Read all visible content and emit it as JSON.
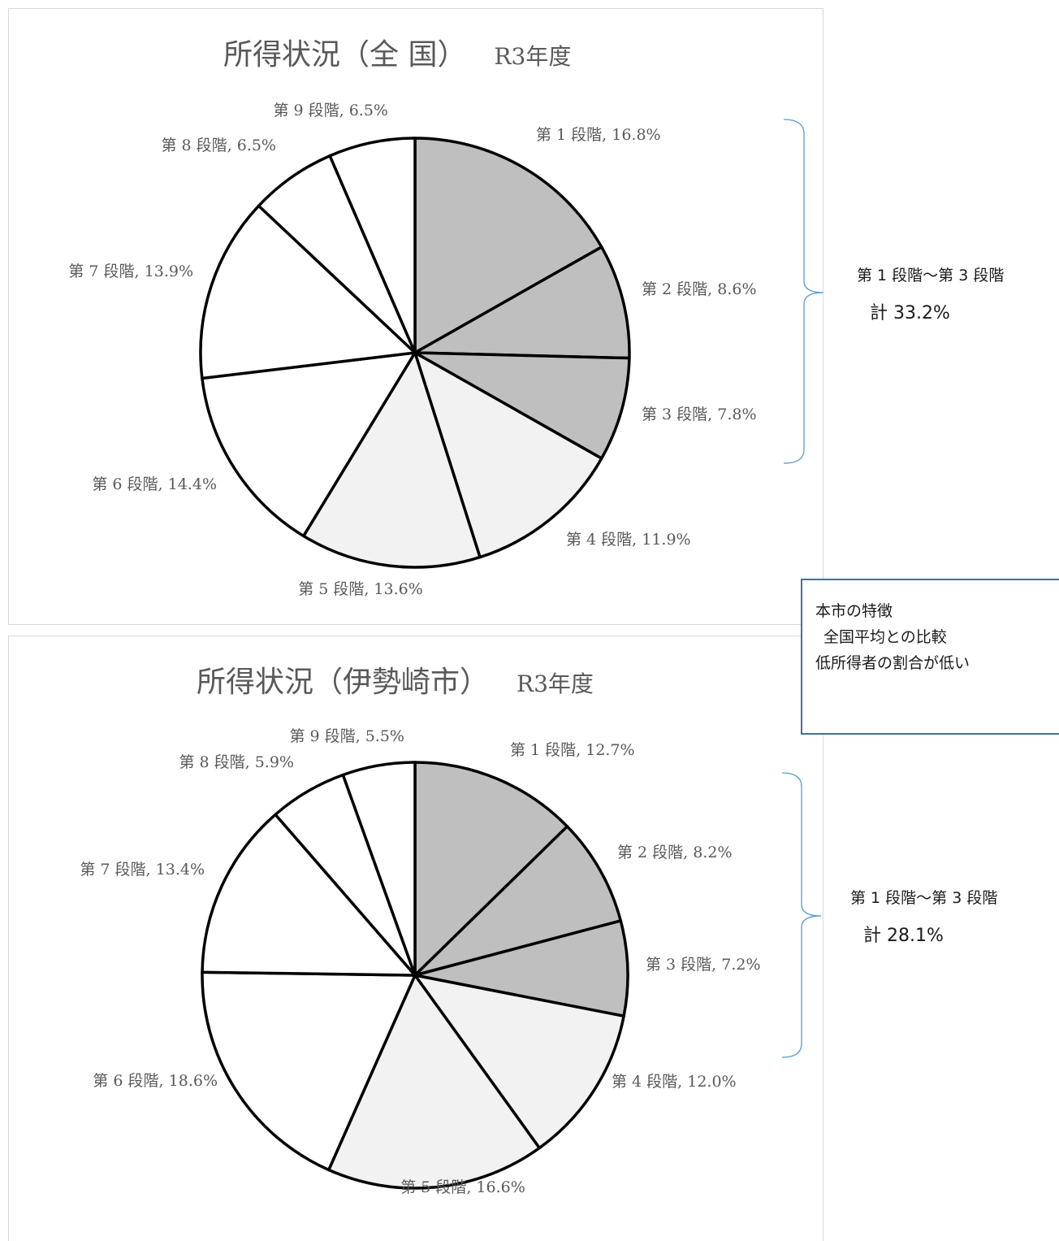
{
  "chart_data": [
    {
      "type": "pie",
      "title": "所得状況（全 国）",
      "subtitle": "R3年度",
      "categories": [
        "第 1 段階",
        "第 2 段階",
        "第 3 段階",
        "第 4 段階",
        "第 5 段階",
        "第 6 段階",
        "第 7 段階",
        "第 8 段階",
        "第 9 段階"
      ],
      "values": [
        16.8,
        8.6,
        7.8,
        11.9,
        13.6,
        14.4,
        13.9,
        6.5,
        6.5
      ],
      "data_labels": [
        "第 1 段階, 16.8%",
        "第 2 段階, 8.6%",
        "第 3 段階, 7.8%",
        "第 4 段階, 11.9%",
        "第 5 段階, 13.6%",
        "第 6 段階, 14.4%",
        "第 7 段階, 13.9%",
        "第 8 段階, 6.5%",
        "第 9 段階, 6.5%"
      ],
      "slice_colors": [
        "#bfbfbf",
        "#bfbfbf",
        "#bfbfbf",
        "#f2f2f2",
        "#f2f2f2",
        "#ffffff",
        "#ffffff",
        "#ffffff",
        "#ffffff"
      ],
      "bracket_range": "第 1 段階～第 3 段階",
      "bracket_total": "計 33.2%"
    },
    {
      "type": "pie",
      "title": "所得状況（伊勢崎市）",
      "subtitle": "R3年度",
      "categories": [
        "第 1 段階",
        "第 2 段階",
        "第 3 段階",
        "第 4 段階",
        "第 5 段階",
        "第 6 段階",
        "第 7 段階",
        "第 8 段階",
        "第 9 段階"
      ],
      "values": [
        12.7,
        8.2,
        7.2,
        12.0,
        16.6,
        18.6,
        13.4,
        5.9,
        5.5
      ],
      "data_labels": [
        "第 1 段階, 12.7%",
        "第 2 段階, 8.2%",
        "第 3 段階, 7.2%",
        "第 4 段階, 12.0%",
        "第 5 段階, 16.6%",
        "第 6 段階, 18.6%",
        "第 7 段階, 13.4%",
        "第 8 段階, 5.9%",
        "第 9 段階, 5.5%"
      ],
      "slice_colors": [
        "#bfbfbf",
        "#bfbfbf",
        "#bfbfbf",
        "#f2f2f2",
        "#f2f2f2",
        "#ffffff",
        "#ffffff",
        "#ffffff",
        "#ffffff"
      ],
      "bracket_range": "第 1 段階～第 3 段階",
      "bracket_total": "計 28.1%"
    }
  ],
  "note": {
    "line1": "本市の特徴",
    "line2": "全国平均との比較",
    "line3": "低所得者の割合が低い"
  },
  "colors": {
    "slice_stroke": "#000000",
    "bracket": "#5b9bd5",
    "note_border": "#41719c"
  }
}
